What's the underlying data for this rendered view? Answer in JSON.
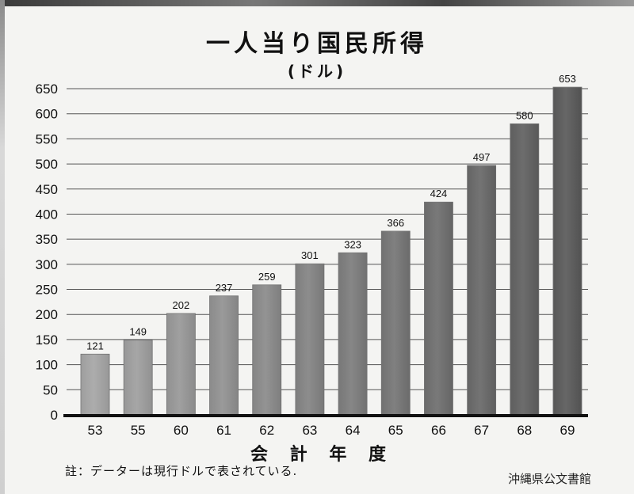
{
  "title": "一人当り国民所得",
  "unit": "(ドル)",
  "xlabel": "会 計 年 度",
  "note": "註：データーは現行ドルで表されている.",
  "credit": "沖縄県公文書館",
  "chart_data": {
    "type": "bar",
    "title": "一人当り国民所得",
    "subtitle": "(ドル)",
    "xlabel": "会計年度",
    "ylabel": "",
    "categories": [
      "53",
      "55",
      "60",
      "61",
      "62",
      "63",
      "64",
      "65",
      "66",
      "67",
      "68",
      "69"
    ],
    "values": [
      121,
      149,
      202,
      237,
      259,
      301,
      323,
      366,
      424,
      497,
      580,
      653
    ],
    "yticks": [
      0,
      50,
      100,
      150,
      200,
      250,
      300,
      350,
      400,
      450,
      500,
      550,
      600,
      650
    ],
    "ylim": [
      0,
      650
    ],
    "grid": true,
    "legend": "none",
    "bar_color_start": "#a6a6a6",
    "bar_color_end": "#3a3a3a"
  }
}
